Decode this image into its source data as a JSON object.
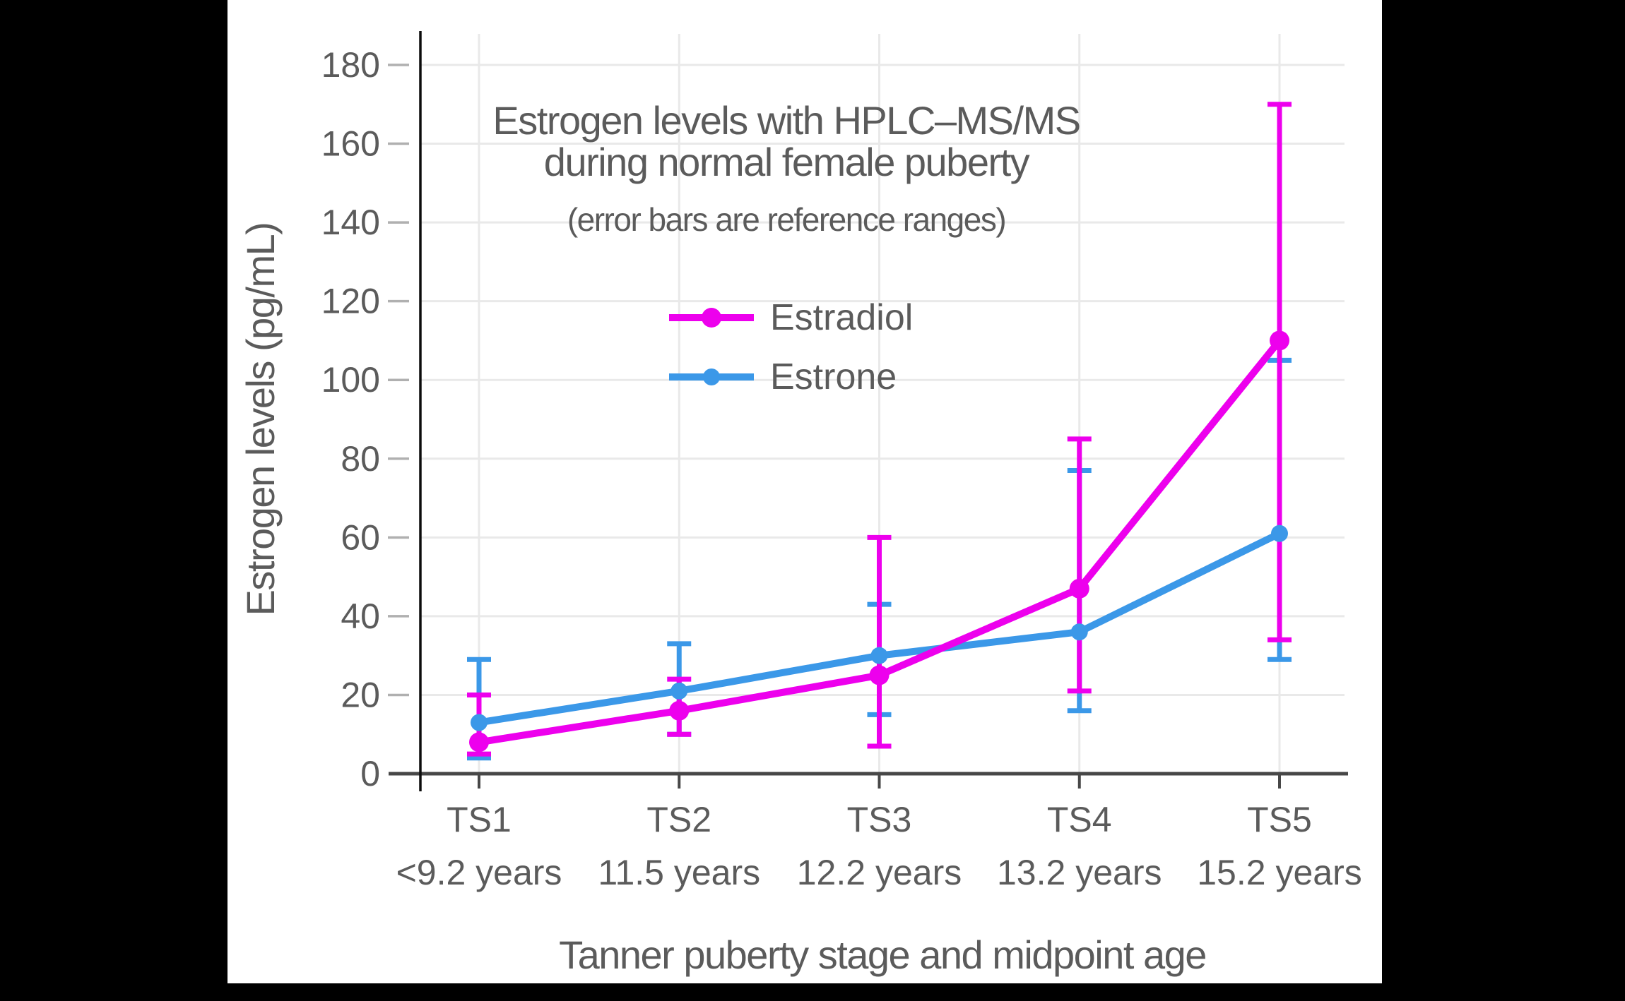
{
  "figure": {
    "background_color": "#000000",
    "panel_color": "#ffffff",
    "text_color": "#5b5b5b",
    "gridline_color": "#e9e9e9",
    "axis_line_color": "#0b0b0b",
    "baseline_color": "#474747",
    "tick_dash_color": "#b0b0b0"
  },
  "chart_data": {
    "type": "line",
    "title_line1": "Estrogen levels with HPLC–MS/MS",
    "title_line2": "during normal female puberty",
    "subtitle": "(error bars are reference ranges)",
    "xlabel": "Tanner puberty stage and midpoint age",
    "ylabel": "Estrogen levels (pg/mL)",
    "ylim": [
      0,
      180
    ],
    "yticks": [
      0,
      20,
      40,
      60,
      80,
      100,
      120,
      140,
      160,
      180
    ],
    "grid": true,
    "legend_position": "upper-center-inside",
    "error_bar_meaning": "reference ranges",
    "categories": [
      "TS1",
      "TS2",
      "TS3",
      "TS4",
      "TS5"
    ],
    "category_ages": [
      "<9.2 years",
      "11.5 years",
      "12.2 years",
      "13.2 years",
      "15.2 years"
    ],
    "series": [
      {
        "name": "Estradiol",
        "color": "#ed00ed",
        "values": [
          8,
          16,
          25,
          47,
          110
        ],
        "range_low": [
          5,
          10,
          7,
          21,
          34
        ],
        "range_high": [
          20,
          24,
          60,
          85,
          170
        ]
      },
      {
        "name": "Estrone",
        "color": "#3b98e8",
        "values": [
          13,
          21,
          30,
          36,
          61
        ],
        "range_low": [
          4,
          10,
          15,
          16,
          29
        ],
        "range_high": [
          29,
          33,
          43,
          77,
          105
        ]
      }
    ]
  }
}
